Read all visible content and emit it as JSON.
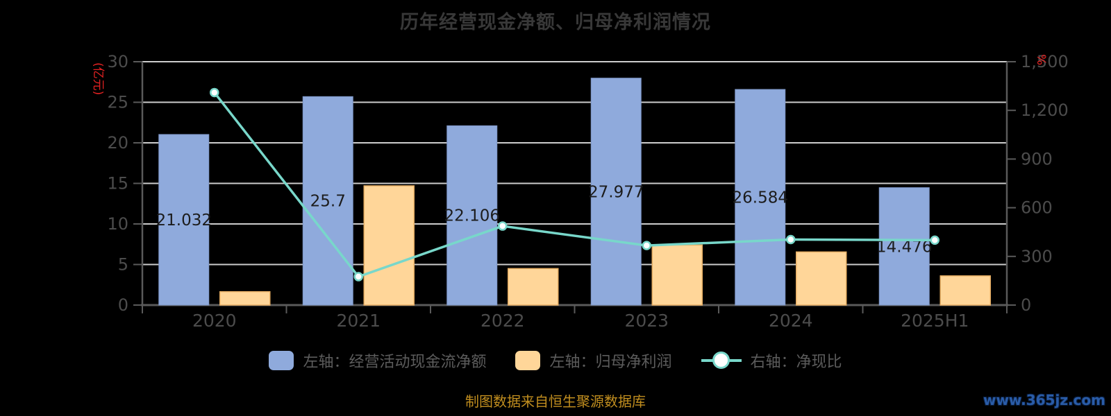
{
  "title": "历年经营现金净额、归母净利润情况",
  "source_note": "制图数据来自恒生聚源数据库",
  "watermark": "www.365jz.com",
  "colors": {
    "background": "#000000",
    "bar_cash": "#8faadc",
    "bar_cash_border": "#7d96c7",
    "bar_profit": "#ffd699",
    "bar_profit_border": "#e8af64",
    "line": "#78d7ca",
    "marker_fill": "#ffffff",
    "grid": "#cdcdcd",
    "axis_line": "#5a5a5a",
    "title_text": "#383838",
    "axis_text": "#4c4c4c",
    "bar_label_text": "#1c1c1c",
    "legend_text": "#5c5c5c",
    "axis_name_red": "#e62222",
    "source_text": "#c18e1f",
    "watermark_blue": "#2a5ca8",
    "watermark_outline": "#0a1e3e"
  },
  "legend": {
    "items": [
      {
        "label": "左轴：经营活动现金流净额",
        "symbol": "bar",
        "color_key": "bar_cash"
      },
      {
        "label": "左轴：归母净利润",
        "symbol": "bar",
        "color_key": "bar_profit"
      },
      {
        "label": "右轴：净现比",
        "symbol": "line-marker",
        "color_key": "line"
      }
    ]
  },
  "chart_data": {
    "type": "bar",
    "title": "历年经营现金净额、归母净利润情况",
    "categories": [
      "2020",
      "2021",
      "2022",
      "2023",
      "2024",
      "2025H1"
    ],
    "series": [
      {
        "name": "左轴：经营活动现金流净额",
        "type": "bar",
        "yaxis": "left",
        "color_key": "bar_cash",
        "values": [
          21.032,
          25.7,
          22.106,
          27.977,
          26.584,
          14.476
        ],
        "data_labels": [
          "21.032",
          "25.7",
          "22.106",
          "27.977",
          "26.584",
          "14.476"
        ]
      },
      {
        "name": "左轴：归母净利润",
        "type": "bar",
        "yaxis": "left",
        "color_key": "bar_profit",
        "values": [
          1.65,
          14.7,
          4.5,
          7.4,
          6.55,
          3.6
        ]
      },
      {
        "name": "右轴：净现比",
        "type": "line",
        "yaxis": "right",
        "color_key": "line",
        "values": [
          1310,
          175,
          487,
          367,
          404,
          400
        ]
      }
    ],
    "left_axis": {
      "name": "(亿元)",
      "min": 0,
      "max": 30,
      "tick_labels": [
        "0",
        "5",
        "10",
        "15",
        "20",
        "25",
        "30"
      ]
    },
    "right_axis": {
      "name": "%",
      "min": 0,
      "max": 1500,
      "tick_labels": [
        "0",
        "300",
        "600",
        "900",
        "1,200",
        "1,500"
      ]
    },
    "grid": true,
    "legend_position": "bottom"
  }
}
